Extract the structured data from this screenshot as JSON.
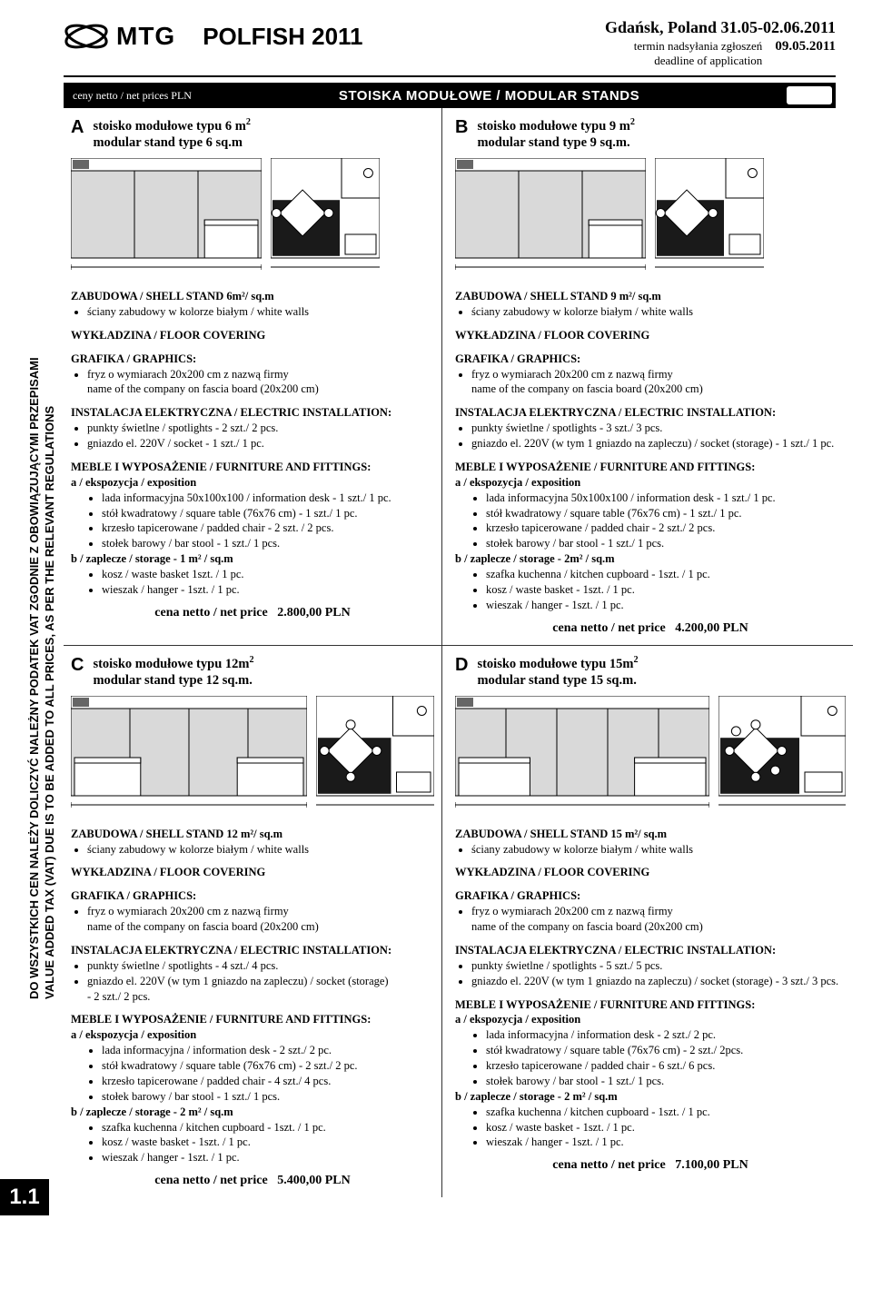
{
  "header": {
    "logo_text": "MTG",
    "event_title": "POLFISH 2011",
    "place_date": "Gdańsk, Poland 31.05-02.06.2011",
    "deadline_pl": "termin nadsyłania zgłoszeń",
    "deadline_en": "deadline of application",
    "deadline_date": "09.05.2011"
  },
  "black_bar": {
    "prices_label": "ceny netto / net prices PLN",
    "title": "STOISKA MODUŁOWE / MODULAR STANDS"
  },
  "side_text": {
    "line1": "DO WSZYSTKICH CEN NALEŻY DOLICZYĆ NALEŻNY PODATEK VAT ZGODNIE Z OBOWIĄZUJĄCYMI PRZEPISAMI",
    "line2": "VALUE ADDED TAX (VAT) DUE IS TO BE ADDED TO ALL PRICES, AS PER THE RELEVANT REGULATIONS"
  },
  "page_num": "1.1",
  "diagrams": {
    "front_fill": "#d9d9d9",
    "floor_fill": "#1a1a1a",
    "stroke": "#000000",
    "counter_fill": "#ffffff",
    "A": {
      "front_w": 210,
      "plan_w": 120,
      "panels": 3
    },
    "B": {
      "front_w": 210,
      "plan_w": 120,
      "panels": 3
    },
    "C": {
      "front_w": 260,
      "plan_w": 130,
      "panels": 4
    },
    "D": {
      "front_w": 280,
      "plan_w": 140,
      "panels": 5
    }
  },
  "stands": {
    "A": {
      "letter": "A",
      "title_pl": "stoisko modułowe typu 6 m",
      "title_en": "modular stand type 6 sq.m",
      "shell_heading": "ZABUDOWA /  SHELL STAND 6m²/ sq.m",
      "walls": "ściany zabudowy w kolorze białym / white walls",
      "floor_heading": "WYKŁADZINA / FLOOR COVERING",
      "graphics_heading": "GRAFIKA  / GRAPHICS:",
      "graphics_1": "fryz o wymiarach 20x200 cm z nazwą firmy",
      "graphics_2": "name of the company on fascia board (20x200 cm)",
      "electric_heading": "INSTALACJA ELEKTRYCZNA / ELECTRIC INSTALLATION:",
      "electric_1": "punkty świetlne  / spotlights - 2 szt./ 2 pcs.",
      "electric_2": "gniazdo el. 220V / socket - 1 szt./ 1 pc.",
      "furn_heading": "MEBLE I WYPOSAŻENIE / FURNITURE AND FITTINGS:",
      "expo_heading": "a / ekspozycja / exposition",
      "expo_items": [
        "lada informacyjna 50x100x100 / information desk - 1 szt./ 1 pc.",
        "stół kwadratowy / square table (76x76 cm)  - 1 szt./ 1 pc.",
        "krzesło tapicerowane / padded chair - 2 szt. / 2 pcs.",
        "stołek barowy / bar stool - 1 szt./ 1 pcs."
      ],
      "storage_heading": "b / zaplecze / storage - 1 m² / sq.m",
      "storage_items": [
        "kosz / waste basket  1szt. / 1 pc.",
        "wieszak / hanger - 1szt. / 1 pc."
      ],
      "price_label": "cena netto  / net price",
      "price_value": "2.800,00 PLN"
    },
    "B": {
      "letter": "B",
      "title_pl": "stoisko modułowe typu 9 m",
      "title_en": "modular stand type 9 sq.m.",
      "shell_heading": "ZABUDOWA /  SHELL STAND 9 m²/ sq.m",
      "walls": "ściany zabudowy w kolorze białym / white walls",
      "floor_heading": "WYKŁADZINA / FLOOR COVERING",
      "graphics_heading": "GRAFIKA  / GRAPHICS:",
      "graphics_1": "fryz o wymiarach 20x200 cm z nazwą firmy",
      "graphics_2": "name of the company on fascia board (20x200 cm)",
      "electric_heading": "INSTALACJA ELEKTRYCZNA / ELECTRIC INSTALLATION:",
      "electric_1": "punkty świetlne / spotlights - 3 szt./ 3 pcs.",
      "electric_2": "gniazdo el. 220V (w tym 1 gniazdo na zapleczu) / socket (storage) - 1 szt./ 1 pc.",
      "furn_heading": "MEBLE I WYPOSAŻENIE / FURNITURE AND FITTINGS:",
      "expo_heading": "a / ekspozycja / exposition",
      "expo_items": [
        "lada informacyjna 50x100x100 / information desk - 1 szt./ 1 pc.",
        "stół kwadratowy / square table (76x76 cm)  - 1 szt./ 1 pc.",
        "krzesło tapicerowane / padded chair - 2 szt./ 2 pcs.",
        "stołek barowy / bar stool - 1 szt./ 1 pcs."
      ],
      "storage_heading": "b / zaplecze / storage - 2m² / sq.m",
      "storage_items": [
        "szafka kuchenna / kitchen cupboard - 1szt. / 1 pc.",
        "kosz / waste basket - 1szt. / 1 pc.",
        "wieszak / hanger - 1szt. / 1 pc."
      ],
      "price_label": "cena netto  / net price",
      "price_value": "4.200,00 PLN"
    },
    "C": {
      "letter": "C",
      "title_pl": "stoisko modułowe typu 12m",
      "title_en": "modular stand type 12 sq.m.",
      "shell_heading": "ZABUDOWA /  SHELL STAND 12 m²/ sq.m",
      "walls": "ściany zabudowy w kolorze białym / white walls",
      "floor_heading": "WYKŁADZINA / FLOOR COVERING",
      "graphics_heading": "GRAFIKA  / GRAPHICS:",
      "graphics_1": "fryz o wymiarach 20x200 cm z nazwą firmy",
      "graphics_2": "name of the company on fascia board (20x200 cm)",
      "electric_heading": "INSTALACJA ELEKTRYCZNA / ELECTRIC INSTALLATION:",
      "electric_1": "punkty świetlne / spotlights - 4 szt./ 4 pcs.",
      "electric_2": "gniazdo el. 220V (w tym 1 gniazdo na zapleczu) / socket (storage)",
      "electric_2b": "- 2 szt./ 2 pcs.",
      "furn_heading": "MEBLE I WYPOSAŻENIE / FURNITURE AND FITTINGS:",
      "expo_heading": "a / ekspozycja / exposition",
      "expo_items": [
        "lada informacyjna / information desk - 2 szt./ 2 pc.",
        "stół kwadratowy / square table (76x76 cm)  - 2 szt./ 2 pc.",
        "krzesło tapicerowane  / padded chair - 4 szt./ 4 pcs.",
        "stołek barowy / bar stool - 1 szt./ 1 pcs."
      ],
      "storage_heading": "b / zaplecze / storage - 2 m² / sq.m",
      "storage_items": [
        "szafka kuchenna / kitchen cupboard - 1szt. / 1 pc.",
        "kosz / waste basket - 1szt. / 1 pc.",
        "wieszak / hanger - 1szt. / 1 pc."
      ],
      "price_label": "cena netto  / net price",
      "price_value": "5.400,00 PLN"
    },
    "D": {
      "letter": "D",
      "title_pl": "stoisko modułowe typu 15m",
      "title_en": "modular stand type 15 sq.m.",
      "shell_heading": "ZABUDOWA /  SHELL STAND 15 m²/ sq.m",
      "walls": "ściany zabudowy w kolorze białym / white walls",
      "floor_heading": "WYKŁADZINA / FLOOR COVERING",
      "graphics_heading": "GRAFIKA  / GRAPHICS:",
      "graphics_1": "fryz o wymiarach 20x200 cm z nazwą firmy",
      "graphics_2": "name of the company on fascia board (20x200 cm)",
      "electric_heading": "INSTALACJA ELEKTRYCZNA / ELECTRIC INSTALLATION:",
      "electric_1": "punkty świetlne / spotlights - 5 szt./ 5 pcs.",
      "electric_2": "gniazdo el. 220V (w tym 1 gniazdo na zapleczu) / socket (storage) - 3 szt./ 3 pcs.",
      "furn_heading": "MEBLE I WYPOSAŻENIE / FURNITURE AND FITTINGS:",
      "expo_heading": "a / ekspozycja / exposition",
      "expo_items": [
        "lada informacyjna / information desk - 2 szt./ 2 pc.",
        "stół kwadratowy / square  table (76x76 cm)  - 2 szt./ 2pcs.",
        "krzesło tapicerowane  / padded chair - 6 szt./ 6 pcs.",
        "stołek barowy / bar stool  - 1 szt./ 1 pcs."
      ],
      "storage_heading": "b / zaplecze / storage  - 2 m² / sq.m",
      "storage_items": [
        "szafka kuchenna / kitchen cupboard - 1szt. / 1 pc.",
        "kosz / waste basket - 1szt. / 1 pc.",
        "wieszak / hanger - 1szt. / 1 pc."
      ],
      "price_label": "cena netto  / net price",
      "price_value": "7.100,00 PLN"
    }
  }
}
